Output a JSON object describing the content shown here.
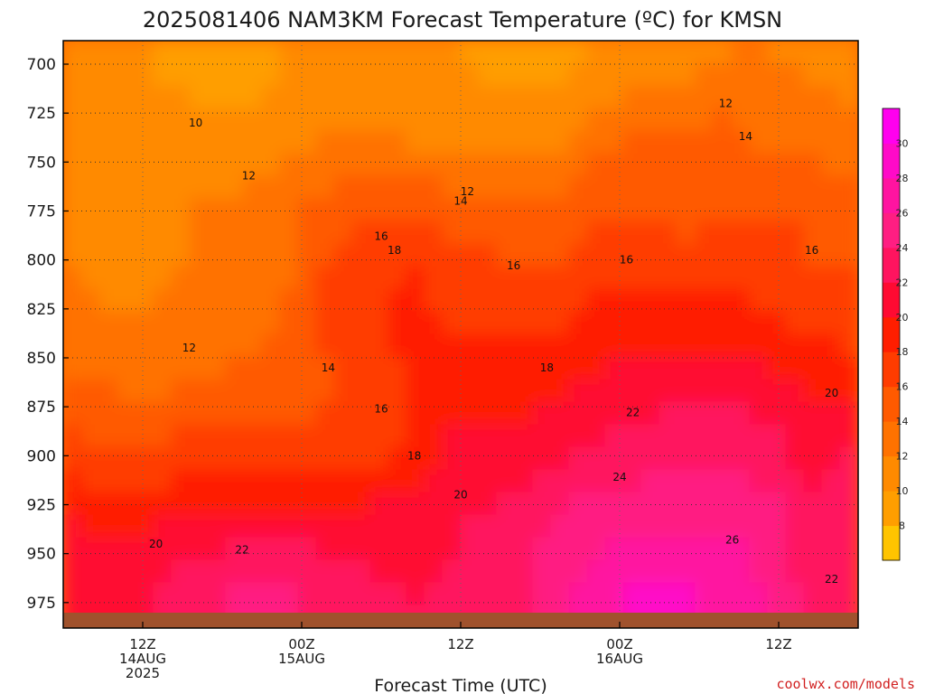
{
  "chart_data": {
    "type": "heatmap",
    "title": "2025081406 NAM3KM Forecast Temperature (ºC) for KMSN",
    "xlabel": "Forecast Time (UTC)",
    "ylabel": "",
    "credit": "coolwx.com/models",
    "y_ticks": [
      "700",
      "725",
      "750",
      "775",
      "800",
      "825",
      "850",
      "875",
      "900",
      "925",
      "950",
      "975"
    ],
    "y_range": [
      688,
      988
    ],
    "x_ticks": [
      {
        "hour": 6,
        "lines": [
          "12Z",
          "14AUG",
          "2025"
        ]
      },
      {
        "hour": 18,
        "lines": [
          "00Z",
          "15AUG"
        ]
      },
      {
        "hour": 30,
        "lines": [
          "12Z"
        ]
      },
      {
        "hour": 42,
        "lines": [
          "00Z",
          "16AUG"
        ]
      },
      {
        "hour": 54,
        "lines": [
          "12Z"
        ]
      }
    ],
    "x_range_forecast_hours": [
      0,
      60
    ],
    "grid": true,
    "colorbar": {
      "labels": [
        "8",
        "10",
        "12",
        "14",
        "16",
        "18",
        "20",
        "22",
        "24",
        "26",
        "28",
        "30"
      ],
      "colors": [
        "#ffc400",
        "#ff9e00",
        "#ff8a00",
        "#ff7200",
        "#ff5a00",
        "#ff3c00",
        "#ff1e00",
        "#ff0a32",
        "#ff145f",
        "#ff1e82",
        "#ff14a0",
        "#ff0ac8",
        "#ff00ee"
      ],
      "placement": "right"
    },
    "ground_color": "#a0522d",
    "series": [
      {
        "pressure": 700,
        "values": [
          10.5,
          10.5,
          10,
          9.5,
          9.5,
          10,
          10.5,
          11,
          10.5,
          10,
          9.5,
          9.5,
          10,
          11,
          11.5,
          12,
          12,
          11.5,
          11
        ]
      },
      {
        "pressure": 725,
        "values": [
          11,
          11,
          10.5,
          10,
          10,
          10.5,
          11.5,
          11.5,
          11,
          11,
          11,
          11,
          12,
          13,
          13.5,
          14,
          13.5,
          13,
          12
        ]
      },
      {
        "pressure": 750,
        "values": [
          11.5,
          11.5,
          11,
          11,
          11.5,
          12,
          13,
          13,
          12.5,
          12.5,
          12.5,
          12,
          14,
          15,
          14.5,
          14.5,
          14,
          14,
          13
        ]
      },
      {
        "pressure": 775,
        "values": [
          12,
          11.5,
          11.5,
          12,
          12.5,
          13,
          15,
          16,
          16,
          15,
          14.5,
          14,
          15.5,
          16,
          15.5,
          16,
          16,
          15.5,
          15
        ]
      },
      {
        "pressure": 800,
        "values": [
          12,
          11.5,
          11.5,
          12,
          12.5,
          13.5,
          16,
          17.5,
          18,
          16.5,
          16,
          15.5,
          17,
          17.5,
          16.5,
          17,
          17,
          16,
          16
        ]
      },
      {
        "pressure": 825,
        "values": [
          12.5,
          12,
          12,
          12.5,
          13,
          14,
          16.5,
          18,
          18.5,
          17.5,
          17,
          17,
          18.5,
          19,
          18.5,
          18.5,
          18,
          17,
          17
        ]
      },
      {
        "pressure": 850,
        "values": [
          13.5,
          13,
          12.5,
          13,
          14,
          14.5,
          16,
          17.5,
          18.5,
          18.5,
          18.5,
          19,
          19.5,
          20,
          20,
          20,
          19.5,
          19,
          18
        ]
      },
      {
        "pressure": 875,
        "values": [
          15,
          14.5,
          14.5,
          15,
          15.5,
          15.5,
          16,
          16.5,
          18,
          19.5,
          19.5,
          20,
          21,
          21.5,
          22,
          22,
          21.5,
          20,
          21
        ]
      },
      {
        "pressure": 900,
        "values": [
          17,
          16.5,
          16.5,
          17,
          17,
          17.5,
          17.5,
          17.5,
          19,
          21,
          21,
          21.5,
          22.5,
          23,
          23.5,
          23.5,
          23,
          21,
          22.5
        ]
      },
      {
        "pressure": 925,
        "values": [
          19.5,
          19,
          19,
          19.5,
          19.5,
          19.5,
          20,
          20,
          20.5,
          22,
          22,
          23.5,
          24.5,
          25,
          25,
          25,
          24.5,
          22,
          24
        ]
      },
      {
        "pressure": 950,
        "values": [
          21,
          21,
          21,
          22,
          22.5,
          22.5,
          22,
          21.5,
          21.5,
          22,
          22.5,
          24.5,
          26,
          26.5,
          26.5,
          26.5,
          25.5,
          22.5,
          23.5
        ]
      },
      {
        "pressure": 975,
        "values": [
          21.5,
          21.5,
          22,
          23.5,
          24.5,
          24.5,
          23.5,
          22.5,
          22,
          22.5,
          23,
          25,
          27.5,
          28.5,
          28.5,
          27.5,
          26,
          23,
          22.5
        ]
      }
    ],
    "series_hours": [
      0,
      3.33,
      6.67,
      10,
      13.33,
      16.67,
      20,
      23.33,
      26.67,
      30,
      33.33,
      36.67,
      40,
      43.33,
      46.67,
      50,
      53.33,
      56.67,
      60
    ],
    "contour_labels": [
      {
        "text": "10",
        "hour": 10,
        "pressure": 730
      },
      {
        "text": "12",
        "hour": 14,
        "pressure": 757
      },
      {
        "text": "12",
        "hour": 30.5,
        "pressure": 765
      },
      {
        "text": "12",
        "hour": 50,
        "pressure": 720
      },
      {
        "text": "14",
        "hour": 30,
        "pressure": 770
      },
      {
        "text": "14",
        "hour": 51.5,
        "pressure": 737
      },
      {
        "text": "16",
        "hour": 24,
        "pressure": 788
      },
      {
        "text": "16",
        "hour": 34,
        "pressure": 803
      },
      {
        "text": "16",
        "hour": 42.5,
        "pressure": 800
      },
      {
        "text": "16",
        "hour": 56.5,
        "pressure": 795
      },
      {
        "text": "18",
        "hour": 25,
        "pressure": 795
      },
      {
        "text": "18",
        "hour": 36.5,
        "pressure": 855
      },
      {
        "text": "12",
        "hour": 9.5,
        "pressure": 845
      },
      {
        "text": "14",
        "hour": 20,
        "pressure": 855
      },
      {
        "text": "16",
        "hour": 24,
        "pressure": 876
      },
      {
        "text": "18",
        "hour": 26.5,
        "pressure": 900
      },
      {
        "text": "20",
        "hour": 30,
        "pressure": 920
      },
      {
        "text": "20",
        "hour": 7,
        "pressure": 945
      },
      {
        "text": "22",
        "hour": 13.5,
        "pressure": 948
      },
      {
        "text": "22",
        "hour": 43,
        "pressure": 878
      },
      {
        "text": "24",
        "hour": 42,
        "pressure": 911
      },
      {
        "text": "26",
        "hour": 50.5,
        "pressure": 943
      },
      {
        "text": "20",
        "hour": 58,
        "pressure": 868
      },
      {
        "text": "22",
        "hour": 58,
        "pressure": 963
      }
    ]
  }
}
